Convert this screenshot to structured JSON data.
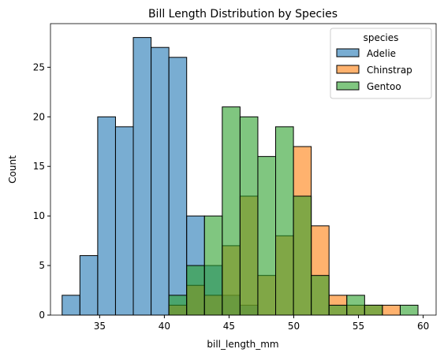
{
  "chart_data": {
    "type": "histogram",
    "title": "Bill Length Distribution by Species",
    "x_label": "bill_length_mm",
    "y_label": "Count",
    "legend_title": "species",
    "legend": "upper right",
    "bins": [
      32.1,
      33.475,
      34.85,
      36.225,
      37.6,
      38.975,
      40.35,
      41.725,
      43.1,
      44.475,
      45.85,
      47.225,
      48.6,
      49.975,
      51.35,
      52.725,
      54.1,
      55.475,
      56.85,
      58.225,
      59.6
    ],
    "series": [
      {
        "name": "Adelie",
        "color": "#1f77b4",
        "values": [
          2,
          6,
          20,
          19,
          28,
          27,
          26,
          10,
          5,
          2,
          1,
          0,
          0,
          0,
          0,
          0,
          0,
          0,
          0,
          0
        ]
      },
      {
        "name": "Chinstrap",
        "color": "#ff7f0e",
        "values": [
          0,
          0,
          0,
          0,
          0,
          0,
          1,
          3,
          2,
          7,
          12,
          4,
          8,
          17,
          9,
          2,
          1,
          1,
          1,
          0
        ]
      },
      {
        "name": "Gentoo",
        "color": "#2ca02c",
        "values": [
          0,
          0,
          0,
          0,
          0,
          0,
          2,
          5,
          10,
          21,
          20,
          16,
          19,
          12,
          4,
          1,
          2,
          1,
          0,
          1
        ]
      }
    ],
    "xlim": [
      31.2,
      61.0
    ],
    "ylim": [
      0,
      29.4
    ],
    "xticks": [
      35,
      40,
      45,
      50,
      55,
      60
    ],
    "yticks": [
      0,
      5,
      10,
      15,
      20,
      25
    ]
  }
}
